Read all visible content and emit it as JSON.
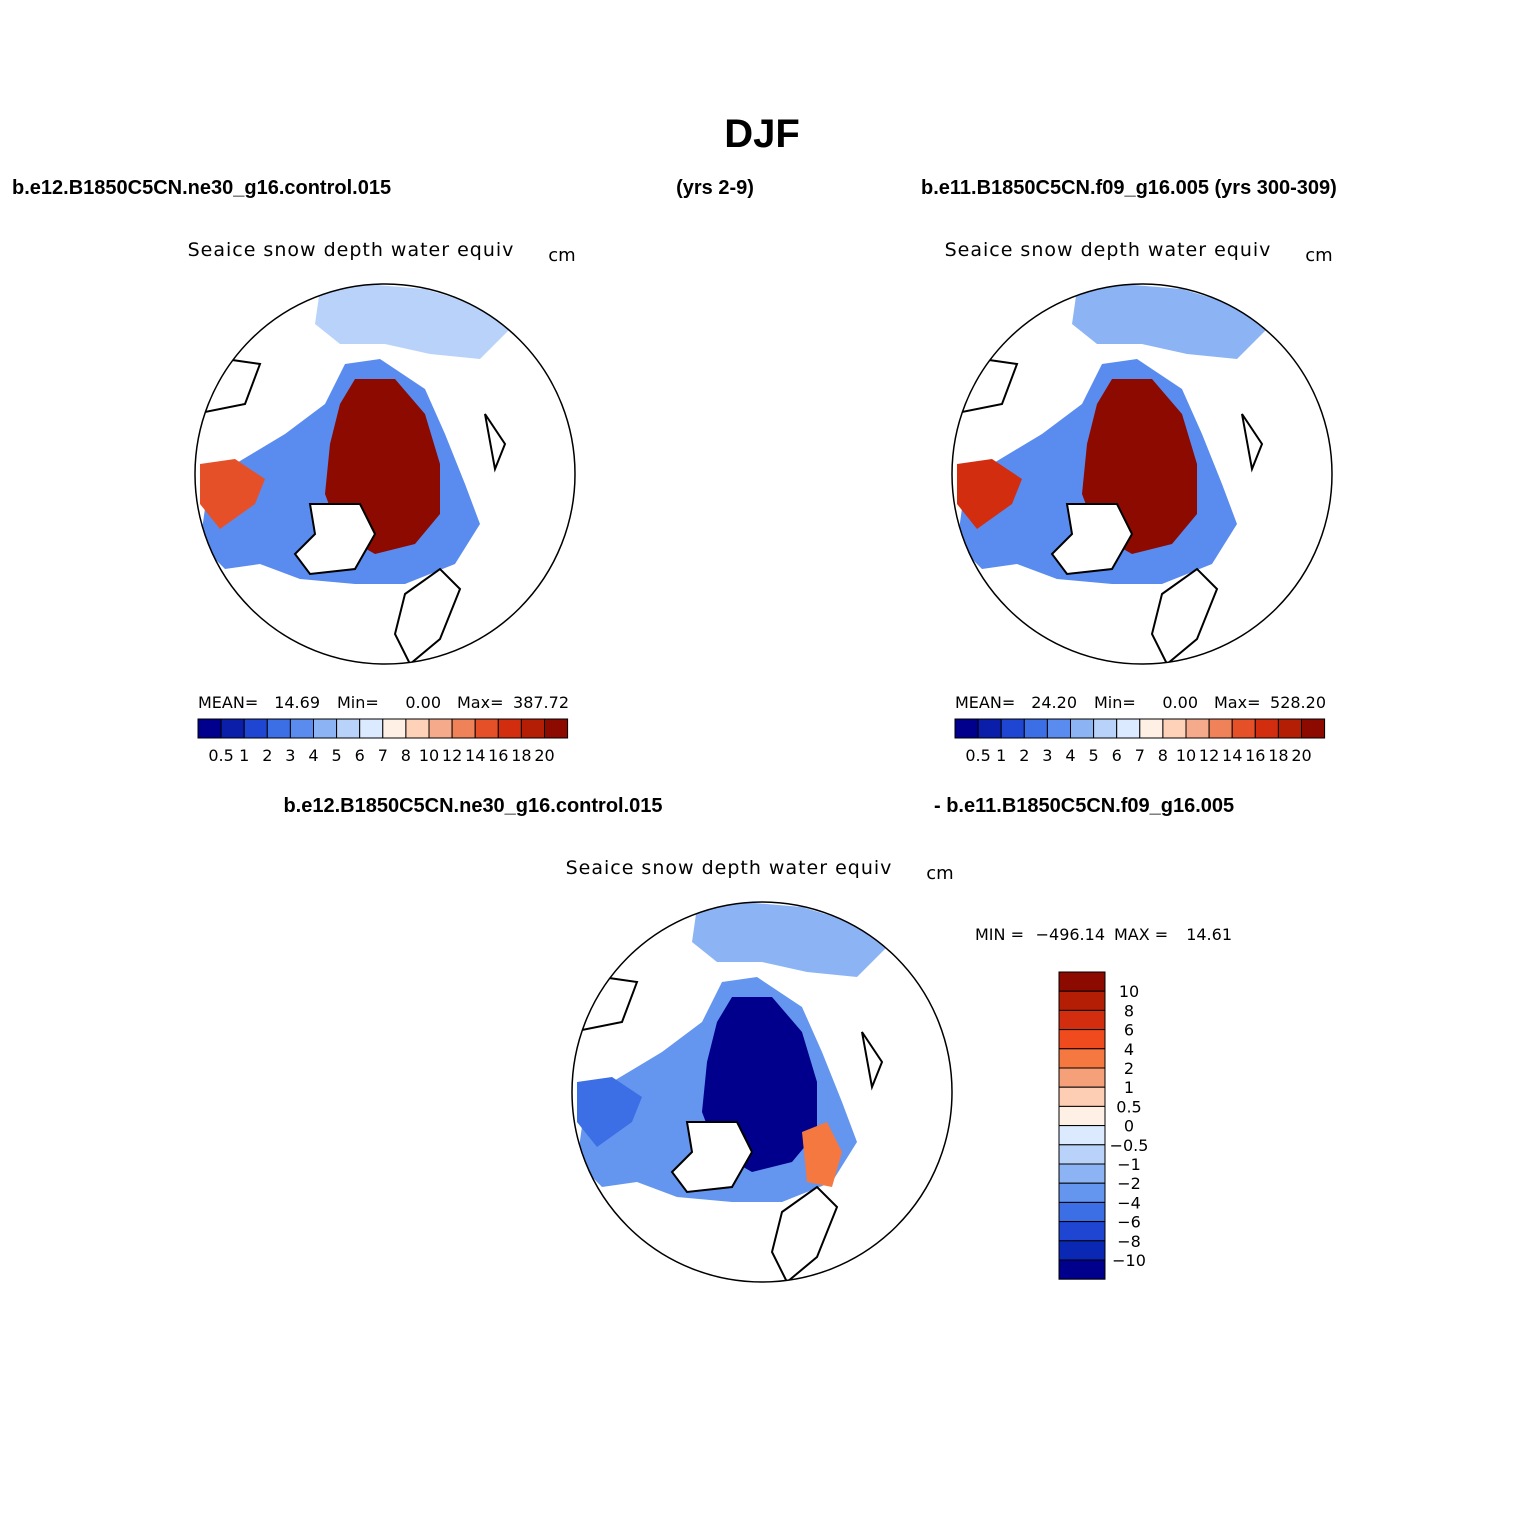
{
  "title": "DJF",
  "header": {
    "left_case": "b.e12.B1850C5CN.ne30_g16.control.015",
    "left_years": "(yrs 2-9)",
    "right_case": "b.e11.B1850C5CN.f09_g16.005 (yrs 300-309)",
    "diff_left": "b.e12.B1850C5CN.ne30_g16.control.015",
    "diff_right": "- b.e11.B1850C5CN.f09_g16.005"
  },
  "palettes": {
    "abs": [
      "#00008c",
      "#0a1eaa",
      "#1e46d2",
      "#3c6ee6",
      "#5a8cf0",
      "#8cb4f5",
      "#b9d2fa",
      "#dceaff",
      "#fff0e6",
      "#fdd2b9",
      "#f5aa8c",
      "#f0825a",
      "#e65028",
      "#d22d0f",
      "#b41e05",
      "#8c0a00"
    ],
    "diff": [
      "#8c0a00",
      "#b41e05",
      "#d22d0f",
      "#f04b1e",
      "#f57841",
      "#f5a078",
      "#fdcdb4",
      "#fff0e6",
      "#dceaff",
      "#b9d2fa",
      "#8cb4f5",
      "#6496f0",
      "#3c6ee6",
      "#1e46d2",
      "#0a28b4",
      "#00008c"
    ]
  },
  "chart_data": [
    {
      "type": "heatmap",
      "panel": "top-left",
      "variable": "Seaice snow depth water equiv",
      "units": "cm",
      "stats": {
        "mean_label": "MEAN=",
        "mean": "14.69",
        "min_label": "Min=",
        "min": "0.00",
        "max_label": "Max=",
        "max": "387.72"
      },
      "colorbar_levels": [
        "0.5",
        "1",
        "2",
        "3",
        "4",
        "5",
        "6",
        "7",
        "8",
        "10",
        "12",
        "14",
        "16",
        "18",
        "20"
      ],
      "ice_field": {
        "core_value": 24,
        "edge_value": 3,
        "pacific_value": 5,
        "baffin_value": 15
      }
    },
    {
      "type": "heatmap",
      "panel": "top-right",
      "variable": "Seaice snow depth water equiv",
      "units": "cm",
      "stats": {
        "mean_label": "MEAN=",
        "mean": "24.20",
        "min_label": "Min=",
        "min": "0.00",
        "max_label": "Max=",
        "max": "528.20"
      },
      "colorbar_levels": [
        "0.5",
        "1",
        "2",
        "3",
        "4",
        "5",
        "6",
        "7",
        "8",
        "10",
        "12",
        "14",
        "16",
        "18",
        "20"
      ],
      "ice_field": {
        "core_value": 30,
        "edge_value": 3,
        "pacific_value": 4,
        "baffin_value": 16
      }
    },
    {
      "type": "heatmap",
      "panel": "bottom-difference",
      "variable": "Seaice snow depth water equiv",
      "units": "cm",
      "stats": {
        "min_label": "MIN =",
        "min": "−496.14",
        "max_label": "MAX =",
        "max": "14.61"
      },
      "colorbar_levels": [
        "10",
        "8",
        "6",
        "4",
        "2",
        "1",
        "0.5",
        "0",
        "−0.5",
        "−1",
        "−2",
        "−4",
        "−6",
        "−8",
        "−10"
      ],
      "ice_field": {
        "core_value": -12,
        "edge_value": -3,
        "pacific_value": -2,
        "baffin_value": -5,
        "barents_value": 2
      }
    }
  ]
}
